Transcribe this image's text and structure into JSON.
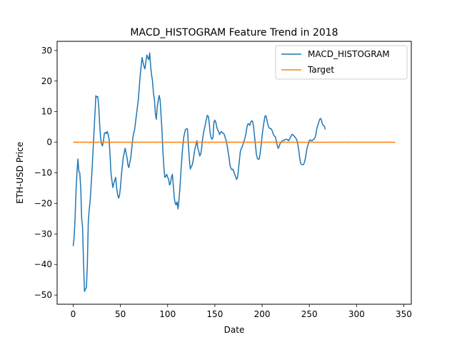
{
  "chart_data": {
    "type": "line",
    "title": "MACD_HISTOGRAM Feature Trend in 2018",
    "xlabel": "Date",
    "ylabel": "ETH-USD Price",
    "xlim": [
      -17,
      358
    ],
    "ylim": [
      -53,
      33
    ],
    "xticks": [
      0,
      50,
      100,
      150,
      200,
      250,
      300,
      350
    ],
    "yticks": [
      -50,
      -40,
      -30,
      -20,
      -10,
      0,
      10,
      20,
      30
    ],
    "xtick_labels": [
      "0",
      "50",
      "100",
      "150",
      "200",
      "250",
      "300",
      "350"
    ],
    "ytick_labels": [
      "−50",
      "−40",
      "−30",
      "−20",
      "−10",
      "0",
      "10",
      "20",
      "30"
    ],
    "grid": false,
    "legend_position": "upper right",
    "series": [
      {
        "name": "MACD_HISTOGRAM",
        "color": "#1f77b4",
        "points": [
          [
            0,
            -34
          ],
          [
            1,
            -31
          ],
          [
            2,
            -25
          ],
          [
            3,
            -16
          ],
          [
            4,
            -10
          ],
          [
            5,
            -5.5
          ],
          [
            6,
            -9.5
          ],
          [
            7,
            -10
          ],
          [
            8,
            -15
          ],
          [
            9,
            -25
          ],
          [
            10,
            -28
          ],
          [
            11,
            -40
          ],
          [
            12,
            -48.8
          ],
          [
            13,
            -48
          ],
          [
            14,
            -47.5
          ],
          [
            15,
            -40
          ],
          [
            16,
            -26
          ],
          [
            17,
            -22
          ],
          [
            18,
            -19
          ],
          [
            19,
            -14
          ],
          [
            20,
            -9
          ],
          [
            21,
            -3
          ],
          [
            22,
            3
          ],
          [
            23,
            9
          ],
          [
            24,
            15.2
          ],
          [
            25,
            14.8
          ],
          [
            26,
            14.9
          ],
          [
            27,
            12
          ],
          [
            28,
            6
          ],
          [
            29,
            1.5
          ],
          [
            30,
            -0.5
          ],
          [
            31,
            -1.2
          ],
          [
            32,
            0.3
          ],
          [
            33,
            2.8
          ],
          [
            34,
            3.2
          ],
          [
            35,
            2.8
          ],
          [
            36,
            3.5
          ],
          [
            37,
            2.6
          ],
          [
            38,
            1
          ],
          [
            39,
            -4
          ],
          [
            40,
            -10
          ],
          [
            41,
            -12.5
          ],
          [
            42,
            -14.8
          ],
          [
            43,
            -13.5
          ],
          [
            44,
            -12.5
          ],
          [
            45,
            -11.5
          ],
          [
            46,
            -15
          ],
          [
            47,
            -17
          ],
          [
            48,
            -18.3
          ],
          [
            49,
            -17.5
          ],
          [
            50,
            -15
          ],
          [
            51,
            -11
          ],
          [
            52,
            -8
          ],
          [
            53,
            -5
          ],
          [
            54,
            -3.5
          ],
          [
            55,
            -2
          ],
          [
            56,
            -3.5
          ],
          [
            57,
            -5
          ],
          [
            58,
            -7.5
          ],
          [
            59,
            -8.3
          ],
          [
            60,
            -6.5
          ],
          [
            61,
            -5
          ],
          [
            62,
            -2
          ],
          [
            63,
            1
          ],
          [
            64,
            3
          ],
          [
            65,
            4
          ],
          [
            66,
            6.5
          ],
          [
            67,
            9
          ],
          [
            68,
            11.5
          ],
          [
            69,
            14
          ],
          [
            70,
            18
          ],
          [
            71,
            22
          ],
          [
            72,
            25
          ],
          [
            73,
            27.7
          ],
          [
            74,
            26
          ],
          [
            75,
            24.8
          ],
          [
            76,
            24
          ],
          [
            77,
            26.5
          ],
          [
            78,
            28.5
          ],
          [
            79,
            27.7
          ],
          [
            80,
            27
          ],
          [
            81,
            29.2
          ],
          [
            82,
            25
          ],
          [
            83,
            22
          ],
          [
            84,
            20
          ],
          [
            85,
            16
          ],
          [
            86,
            14
          ],
          [
            87,
            9.5
          ],
          [
            88,
            7.5
          ],
          [
            89,
            11.5
          ],
          [
            90,
            13.5
          ],
          [
            91,
            15.3
          ],
          [
            92,
            14
          ],
          [
            93,
            9
          ],
          [
            94,
            4
          ],
          [
            95,
            -3
          ],
          [
            96,
            -8
          ],
          [
            97,
            -11.5
          ],
          [
            98,
            -11.2
          ],
          [
            99,
            -10.5
          ],
          [
            100,
            -11.5
          ],
          [
            101,
            -12
          ],
          [
            102,
            -14
          ],
          [
            103,
            -13.5
          ],
          [
            104,
            -11.5
          ],
          [
            105,
            -10.5
          ],
          [
            106,
            -14
          ],
          [
            107,
            -18
          ],
          [
            108,
            -20
          ],
          [
            109,
            -20.5
          ],
          [
            110,
            -19.5
          ],
          [
            111,
            -21.8
          ],
          [
            112,
            -19
          ],
          [
            113,
            -15
          ],
          [
            114,
            -10
          ],
          [
            115,
            -5.5
          ],
          [
            116,
            -1.5
          ],
          [
            117,
            1.5
          ],
          [
            118,
            3
          ],
          [
            119,
            4.2
          ],
          [
            120,
            4.4
          ],
          [
            121,
            4.3
          ],
          [
            122,
            -1
          ],
          [
            123,
            -5.5
          ],
          [
            124,
            -8.8
          ],
          [
            125,
            -8
          ],
          [
            126,
            -7.5
          ],
          [
            127,
            -6
          ],
          [
            128,
            -4
          ],
          [
            129,
            -2
          ],
          [
            130,
            -1
          ],
          [
            131,
            0.5
          ],
          [
            132,
            -2
          ],
          [
            133,
            -3
          ],
          [
            134,
            -4.5
          ],
          [
            135,
            -4
          ],
          [
            136,
            -2
          ],
          [
            137,
            1
          ],
          [
            138,
            3
          ],
          [
            139,
            4.5
          ],
          [
            140,
            6
          ],
          [
            141,
            7.5
          ],
          [
            142,
            8.8
          ],
          [
            143,
            8.5
          ],
          [
            144,
            6.5
          ],
          [
            145,
            3
          ],
          [
            146,
            1.5
          ],
          [
            147,
            1
          ],
          [
            148,
            1.5
          ],
          [
            149,
            6.5
          ],
          [
            150,
            7.2
          ],
          [
            151,
            6.5
          ],
          [
            152,
            5
          ],
          [
            153,
            4
          ],
          [
            154,
            3.5
          ],
          [
            155,
            2.5
          ],
          [
            156,
            3.2
          ],
          [
            157,
            3.5
          ],
          [
            158,
            3
          ],
          [
            159,
            3
          ],
          [
            160,
            2.5
          ],
          [
            161,
            1.5
          ],
          [
            162,
            0.5
          ],
          [
            163,
            -1
          ],
          [
            164,
            -3
          ],
          [
            165,
            -5
          ],
          [
            166,
            -7.5
          ],
          [
            167,
            -8.5
          ],
          [
            168,
            -9
          ],
          [
            169,
            -8.8
          ],
          [
            170,
            -9.5
          ],
          [
            171,
            -10.5
          ],
          [
            172,
            -11.2
          ],
          [
            173,
            -12.2
          ],
          [
            174,
            -11.5
          ],
          [
            175,
            -9
          ],
          [
            176,
            -6
          ],
          [
            177,
            -3
          ],
          [
            178,
            -2
          ],
          [
            179,
            -1.5
          ],
          [
            180,
            -0.5
          ],
          [
            181,
            0.5
          ],
          [
            182,
            1.5
          ],
          [
            183,
            3
          ],
          [
            184,
            5
          ],
          [
            185,
            6
          ],
          [
            186,
            6
          ],
          [
            187,
            5.5
          ],
          [
            188,
            6.5
          ],
          [
            189,
            7
          ],
          [
            190,
            6.8
          ],
          [
            191,
            5
          ],
          [
            192,
            2
          ],
          [
            193,
            -1
          ],
          [
            194,
            -4
          ],
          [
            195,
            -5.2
          ],
          [
            196,
            -5.6
          ],
          [
            197,
            -5.5
          ],
          [
            198,
            -3.5
          ],
          [
            199,
            -1
          ],
          [
            200,
            2
          ],
          [
            201,
            4.5
          ],
          [
            202,
            6.5
          ],
          [
            203,
            8.5
          ],
          [
            204,
            8.7
          ],
          [
            205,
            7.5
          ],
          [
            206,
            6
          ],
          [
            207,
            5
          ],
          [
            208,
            4.5
          ],
          [
            209,
            4.5
          ],
          [
            210,
            4.2
          ],
          [
            211,
            3.5
          ],
          [
            212,
            2.5
          ],
          [
            213,
            2
          ],
          [
            214,
            1.8
          ],
          [
            215,
            0.5
          ],
          [
            216,
            -1
          ],
          [
            217,
            -2
          ],
          [
            218,
            -1.5
          ],
          [
            219,
            -0.5
          ],
          [
            220,
            0
          ],
          [
            221,
            0.3
          ],
          [
            222,
            0.5
          ],
          [
            223,
            0.6
          ],
          [
            224,
            0.8
          ],
          [
            225,
            0.9
          ],
          [
            226,
            1
          ],
          [
            227,
            0.8
          ],
          [
            228,
            0.5
          ],
          [
            229,
            1
          ],
          [
            230,
            1.5
          ],
          [
            231,
            2.2
          ],
          [
            232,
            2.6
          ],
          [
            233,
            2.3
          ],
          [
            234,
            2
          ],
          [
            235,
            1.6
          ],
          [
            236,
            1.2
          ],
          [
            237,
            0.5
          ],
          [
            238,
            -1
          ],
          [
            239,
            -3
          ],
          [
            240,
            -5.5
          ],
          [
            241,
            -7
          ],
          [
            242,
            -7.3
          ],
          [
            243,
            -7.4
          ],
          [
            244,
            -7.2
          ],
          [
            245,
            -6.5
          ],
          [
            246,
            -5
          ],
          [
            247,
            -3
          ],
          [
            248,
            -1.5
          ],
          [
            249,
            -0.5
          ],
          [
            250,
            0.5
          ],
          [
            251,
            0.8
          ],
          [
            252,
            0.5
          ],
          [
            253,
            0.5
          ],
          [
            254,
            0.8
          ],
          [
            255,
            1
          ],
          [
            256,
            1.5
          ],
          [
            257,
            2.5
          ],
          [
            258,
            4.5
          ],
          [
            259,
            5.5
          ],
          [
            260,
            6.5
          ],
          [
            261,
            7.5
          ],
          [
            262,
            7.8
          ],
          [
            263,
            7
          ],
          [
            264,
            5.8
          ],
          [
            265,
            5.5
          ],
          [
            266,
            5.2
          ],
          [
            267,
            4.2
          ]
        ]
      },
      {
        "name": "Target",
        "color": "#ff7f0e",
        "constant": 0,
        "x_range": [
          0,
          341
        ]
      }
    ]
  }
}
